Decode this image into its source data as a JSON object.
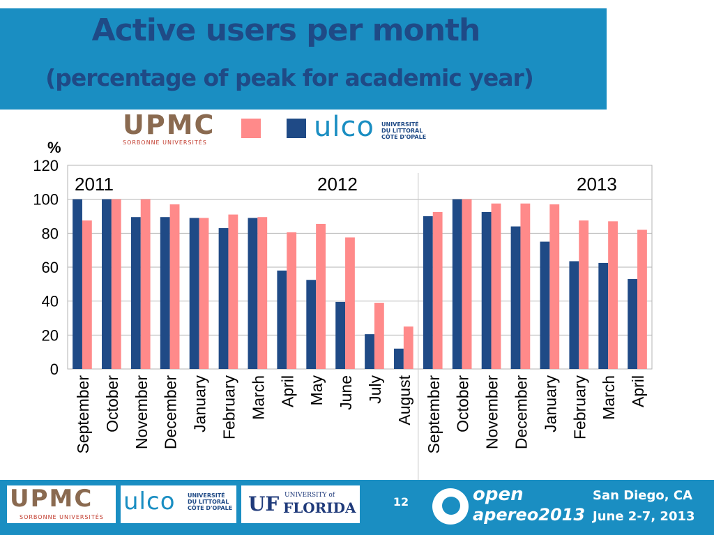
{
  "title": "Active users per month",
  "subtitle": "(percentage of peak for academic year)",
  "logos": {
    "upmc_word": "UPMC",
    "upmc_sub": "SORBONNE UNIVERSITÉS",
    "ulco_word": "ulco",
    "ulco_sub1": "UNIVERSITÉ",
    "ulco_sub2": "DU LITTORAL",
    "ulco_sub3": "CÔTE D'OPALE",
    "uf_mark": "UF",
    "uf_line1": "UNIVERSITY of",
    "uf_line2": "FLORIDA",
    "open_word": "open",
    "apereo_word": "apereo2013"
  },
  "footer": {
    "page_number": "12",
    "location": "San Diego, CA",
    "dates": "June 2-7, 2013"
  },
  "colors": {
    "band": "#1a8ec2",
    "title_text": "#1f4a86",
    "ulco_series": "#1f4a86",
    "upmc_series": "#ff8a8a"
  },
  "chart_data": {
    "type": "bar",
    "ylabel": "%",
    "ylim": [
      0,
      120
    ],
    "yticks": [
      0,
      20,
      40,
      60,
      80,
      100,
      120
    ],
    "grid": true,
    "year_labels": [
      "2011",
      "2012",
      "2013"
    ],
    "categories": [
      "September",
      "October",
      "November",
      "December",
      "January",
      "February",
      "March",
      "April",
      "May",
      "June",
      "July",
      "August",
      "September",
      "October",
      "November",
      "December",
      "January",
      "February",
      "March",
      "April"
    ],
    "series": [
      {
        "key": "ulco",
        "color": "#1f4a86",
        "values": [
          100,
          100,
          89.5,
          89.5,
          89,
          83,
          89,
          58,
          52.5,
          39.5,
          20.5,
          12,
          90,
          100,
          92.5,
          84,
          75,
          63.5,
          62.5,
          53
        ]
      },
      {
        "key": "upmc",
        "color": "#ff8a8a",
        "values": [
          87.5,
          100,
          100,
          97,
          89,
          91,
          89.5,
          80.5,
          85.5,
          77.5,
          39,
          25,
          92.5,
          100,
          97.5,
          97.5,
          97,
          87.5,
          87,
          82
        ]
      }
    ]
  }
}
